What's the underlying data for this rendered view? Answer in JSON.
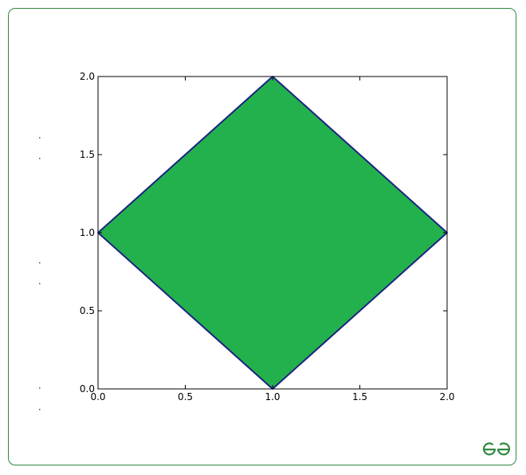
{
  "chart_data": {
    "type": "area",
    "title": "",
    "xlabel": "",
    "ylabel": "",
    "xlim": [
      0.0,
      2.0
    ],
    "ylim": [
      0.0,
      2.0
    ],
    "grid": false,
    "legend": "none",
    "x_ticks": [
      "0.0",
      "0.5",
      "1.0",
      "1.5",
      "2.0"
    ],
    "y_ticks": [
      "0.0",
      "0.5",
      "1.0",
      "1.5",
      "2.0"
    ],
    "x_tick_values": [
      0.0,
      0.5,
      1.0,
      1.5,
      2.0
    ],
    "y_tick_values": [
      0.0,
      0.5,
      1.0,
      1.5,
      2.0
    ],
    "polygon": {
      "x": [
        0.0,
        1.0,
        2.0,
        1.0,
        0.0
      ],
      "y": [
        1.0,
        2.0,
        1.0,
        0.0,
        1.0
      ],
      "fill_color": "#23b14d",
      "edge_color": "#1a237e"
    }
  },
  "logo": {
    "name": "geeksforgeeks-logo-icon",
    "color": "#2f8a3f"
  }
}
